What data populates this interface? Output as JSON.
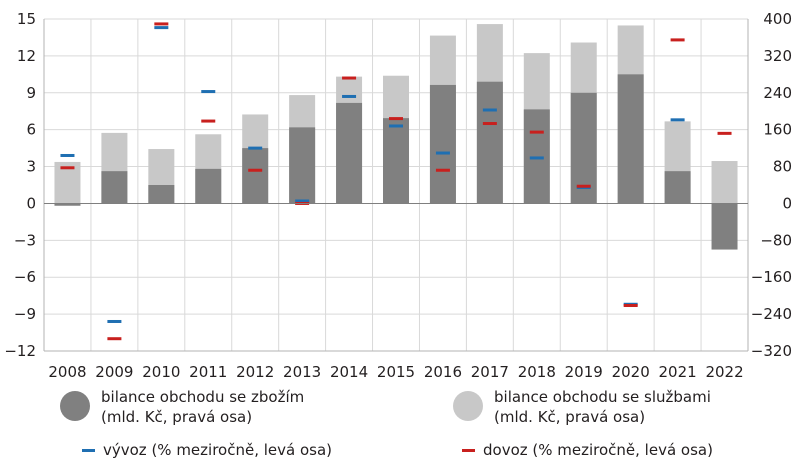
{
  "chart_data": {
    "type": "bar",
    "categories": [
      "2008",
      "2009",
      "2010",
      "2011",
      "2012",
      "2013",
      "2014",
      "2015",
      "2016",
      "2017",
      "2018",
      "2019",
      "2020",
      "2021",
      "2022"
    ],
    "series": [
      {
        "name": "bilance obchodu se zbožím",
        "unit": "mld. Kč",
        "axis": "right",
        "kind": "bar",
        "color": "#808080",
        "values": [
          -5,
          70,
          40,
          75,
          120,
          165,
          218,
          185,
          257,
          264,
          204,
          240,
          280,
          70,
          -100
        ]
      },
      {
        "name": "bilance obchodu se službami",
        "unit": "mld. Kč",
        "axis": "right",
        "kind": "bar",
        "color": "#c8c8c8",
        "values": [
          90,
          153,
          118,
          150,
          193,
          235,
          275,
          277,
          364,
          389,
          326,
          349,
          386,
          178,
          92
        ]
      },
      {
        "name": "vývoz",
        "unit": "% meziročně",
        "axis": "left",
        "kind": "marker",
        "color": "#1f6fb2",
        "values": [
          3.9,
          -9.6,
          14.3,
          9.1,
          4.5,
          0.2,
          8.7,
          6.3,
          4.1,
          7.6,
          3.7,
          1.3,
          -8.2,
          6.8,
          null
        ]
      },
      {
        "name": "dovoz",
        "unit": "% meziročně",
        "axis": "left",
        "kind": "marker",
        "color": "#c8201e",
        "values": [
          2.9,
          -11.0,
          14.6,
          6.7,
          2.7,
          0.0,
          10.2,
          6.9,
          2.7,
          6.5,
          5.8,
          1.4,
          -8.3,
          13.3,
          5.7
        ]
      }
    ],
    "left_axis": {
      "ylim": [
        -12,
        15
      ],
      "ticks": [
        -12,
        -9,
        -6,
        -3,
        0,
        3,
        6,
        9,
        12,
        15
      ]
    },
    "right_axis": {
      "ylim": [
        -320,
        400
      ],
      "ticks": [
        -320,
        -240,
        -160,
        -80,
        0,
        80,
        160,
        240,
        320,
        400
      ]
    },
    "grid": true
  },
  "legend": {
    "goods": {
      "label_line1": "bilance obchodu se zbožím",
      "label_line2": "(mld. Kč, pravá osa)"
    },
    "services": {
      "label_line1": "bilance obchodu se službami",
      "label_line2": "(mld. Kč, pravá osa)"
    },
    "exports": {
      "label": "vývoz (% meziročně, levá osa)"
    },
    "imports": {
      "label": "dovoz (% meziročně, levá osa)"
    }
  }
}
